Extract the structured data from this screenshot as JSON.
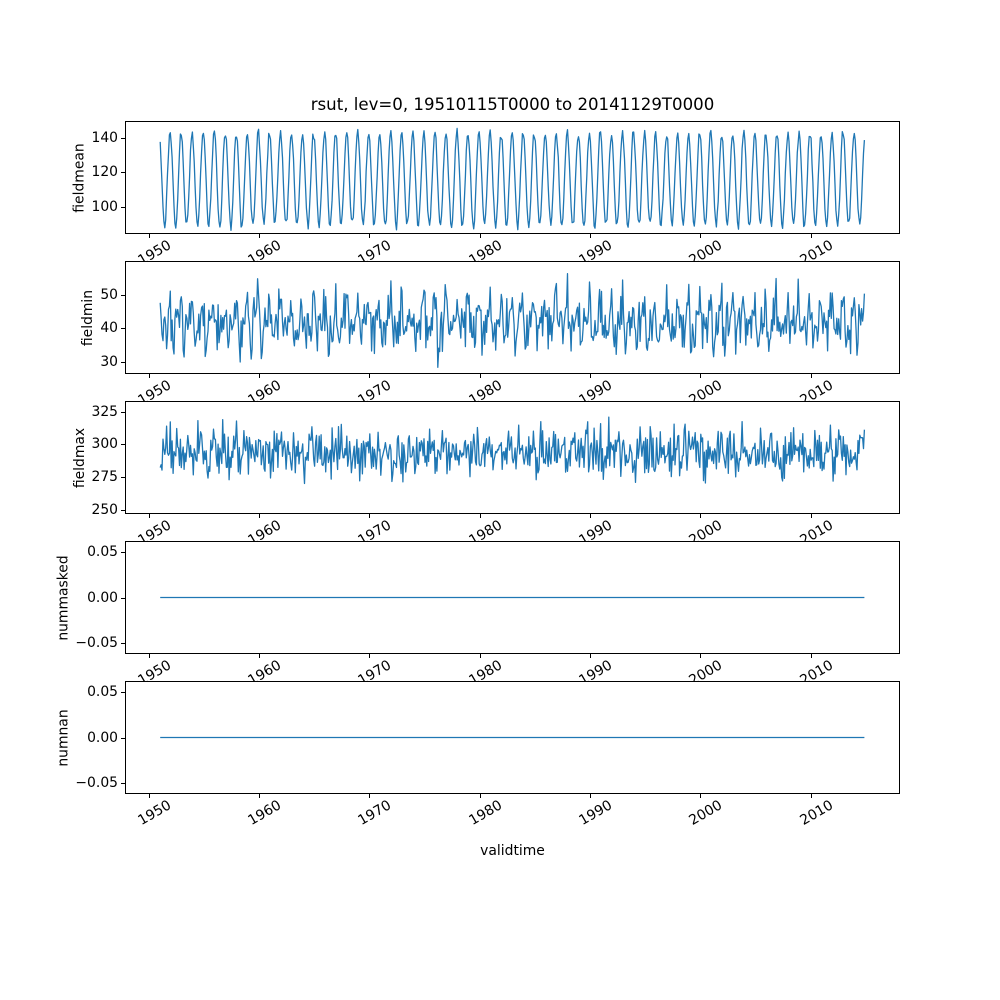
{
  "title": "rsut, lev=0, 19510115T0000 to 20141129T0000",
  "line_color": "#1f77b4",
  "x": {
    "label": "validtime",
    "lim": [
      1947.85,
      2018.1
    ],
    "start": 1951.04,
    "end": 2014.91,
    "points_per_year": 12,
    "ticks": [
      {
        "value": 1950,
        "label": "1950"
      },
      {
        "value": 1960,
        "label": "1960"
      },
      {
        "value": 1970,
        "label": "1970"
      },
      {
        "value": 1980,
        "label": "1980"
      },
      {
        "value": 1990,
        "label": "1990"
      },
      {
        "value": 2000,
        "label": "2000"
      },
      {
        "value": 2010,
        "label": "2010"
      }
    ]
  },
  "chart_data": [
    {
      "type": "line",
      "ylabel": "fieldmean",
      "ylim": [
        84,
        150
      ],
      "yticks": [
        {
          "value": 100,
          "label": "100"
        },
        {
          "value": 120,
          "label": "120"
        },
        {
          "value": 140,
          "label": "140"
        }
      ],
      "signal": {
        "kind": "seasonal",
        "mean": 116,
        "amplitude": 27,
        "phase": 0.06,
        "noise": 3,
        "clip": [
          86,
          148
        ]
      }
    },
    {
      "type": "line",
      "ylabel": "fieldmin",
      "ylim": [
        26.5,
        60
      ],
      "yticks": [
        {
          "value": 30,
          "label": "30"
        },
        {
          "value": 40,
          "label": "40"
        },
        {
          "value": 50,
          "label": "50"
        }
      ],
      "signal": {
        "kind": "noisy-seasonal",
        "mean": 42,
        "amplitude": 4,
        "amplitude2": 2.5,
        "noise": 3.6,
        "clip": [
          28.5,
          57.5
        ]
      }
    },
    {
      "type": "line",
      "ylabel": "fieldmax",
      "ylim": [
        247,
        333
      ],
      "yticks": [
        {
          "value": 250,
          "label": "250"
        },
        {
          "value": 275,
          "label": "275"
        },
        {
          "value": 300,
          "label": "300"
        },
        {
          "value": 325,
          "label": "325"
        }
      ],
      "signal": {
        "kind": "noisy",
        "mean": 294,
        "amplitude": 4,
        "noise": 9.5,
        "clip": [
          252,
          331
        ]
      }
    },
    {
      "type": "line",
      "ylabel": "nummasked",
      "ylim": [
        -0.0625,
        0.0625
      ],
      "yticks": [
        {
          "value": 0.05,
          "label": "0.05"
        },
        {
          "value": 0.0,
          "label": "0.00"
        },
        {
          "value": -0.05,
          "label": "−0.05"
        }
      ],
      "signal": {
        "kind": "constant",
        "value": 0
      }
    },
    {
      "type": "line",
      "ylabel": "numnan",
      "ylim": [
        -0.0625,
        0.0625
      ],
      "yticks": [
        {
          "value": 0.05,
          "label": "0.05"
        },
        {
          "value": 0.0,
          "label": "0.00"
        },
        {
          "value": -0.05,
          "label": "−0.05"
        }
      ],
      "signal": {
        "kind": "constant",
        "value": 0
      }
    }
  ]
}
